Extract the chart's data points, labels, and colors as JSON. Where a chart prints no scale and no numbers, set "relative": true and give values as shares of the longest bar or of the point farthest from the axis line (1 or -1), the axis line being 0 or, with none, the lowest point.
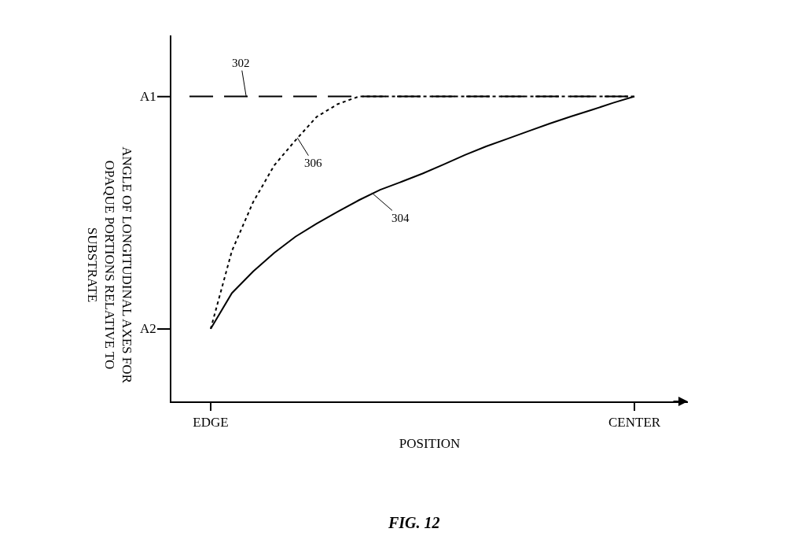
{
  "chart_data": {
    "type": "line",
    "relative": true,
    "xlabel": "POSITION",
    "ylabel": "ANGLE OF LONGITUDINAL AXES FOR OPAQUE PORTIONS RELATIVE TO SUBSTRATE",
    "categories": [
      null,
      "EDGE",
      null,
      null,
      null,
      null,
      null,
      null,
      null,
      null,
      null,
      null,
      null,
      null,
      null,
      null,
      null,
      null,
      null,
      null,
      null,
      "CENTER"
    ],
    "grid": false,
    "marker": "none",
    "series": [
      {
        "color": "#000000",
        "line_style": "dashed",
        "values": [
          1,
          1,
          1,
          1,
          1,
          1,
          1,
          1,
          1,
          1,
          1,
          1,
          1,
          1,
          1,
          1,
          1,
          1,
          1,
          1,
          1,
          1
        ]
      },
      {
        "color": "#000000",
        "line_style": "solid",
        "values": [
          null,
          0.238,
          0.355,
          0.426,
          0.487,
          0.54,
          0.583,
          0.622,
          0.66,
          0.694,
          0.72,
          0.747,
          0.777,
          0.808,
          0.836,
          0.861,
          0.886,
          0.911,
          0.934,
          0.956,
          0.979,
          1
        ]
      },
      {
        "color": "#000000",
        "line_style": "dotted",
        "values": [
          null,
          0.238,
          0.493,
          0.653,
          0.774,
          0.856,
          0.933,
          0.975,
          1,
          1,
          1,
          1,
          1,
          1,
          1,
          1,
          1,
          1,
          1,
          1,
          1,
          1
        ]
      }
    ],
    "annotations": [
      "A1",
      "A2",
      "302",
      "304",
      "306",
      "FIG. 12"
    ]
  }
}
